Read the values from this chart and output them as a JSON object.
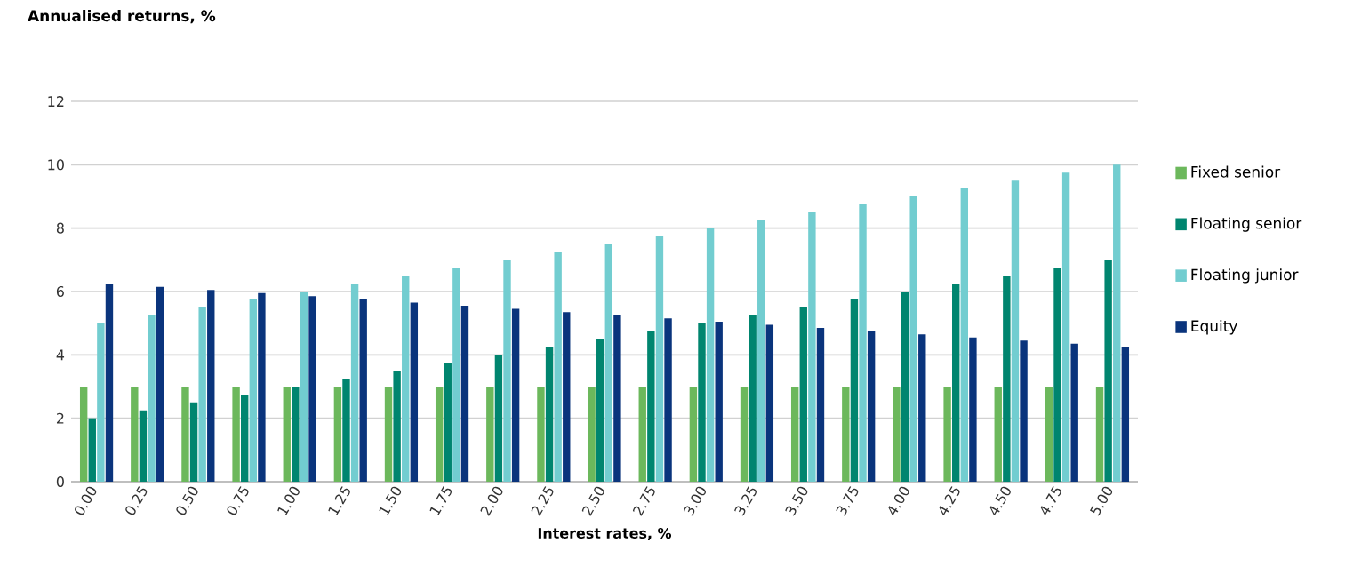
{
  "chart_data": {
    "type": "bar",
    "ylabel": "Annualised returns, %",
    "xlabel": "Interest rates, %",
    "categories": [
      "0.00",
      "0.25",
      "0.50",
      "0.75",
      "1.00",
      "1.25",
      "1.50",
      "1.75",
      "2.00",
      "2.25",
      "2.50",
      "2.75",
      "3.00",
      "3.25",
      "3.50",
      "3.75",
      "4.00",
      "4.25",
      "4.50",
      "4.75",
      "5.00"
    ],
    "series": [
      {
        "name": "Fixed senior",
        "color": "#6cb85c",
        "values": [
          3,
          3,
          3,
          3,
          3,
          3,
          3,
          3,
          3,
          3,
          3,
          3,
          3,
          3,
          3,
          3,
          3,
          3,
          3,
          3,
          3
        ]
      },
      {
        "name": "Floating senior",
        "color": "#00856f",
        "values": [
          2,
          2.25,
          2.5,
          2.75,
          3,
          3.25,
          3.5,
          3.75,
          4,
          4.25,
          4.5,
          4.75,
          5,
          5.25,
          5.5,
          5.75,
          6,
          6.25,
          6.5,
          6.75,
          7
        ]
      },
      {
        "name": "Floating junior",
        "color": "#72cdd0",
        "values": [
          5,
          5.25,
          5.5,
          5.75,
          6,
          6.25,
          6.5,
          6.75,
          7,
          7.25,
          7.5,
          7.75,
          8,
          8.25,
          8.5,
          8.75,
          9,
          9.25,
          9.5,
          9.75,
          10
        ]
      },
      {
        "name": "Equity",
        "color": "#0a347c",
        "values": [
          6.25,
          6.15,
          6.05,
          5.95,
          5.85,
          5.75,
          5.65,
          5.55,
          5.45,
          5.35,
          5.25,
          5.15,
          5.05,
          4.95,
          4.85,
          4.75,
          4.65,
          4.55,
          4.45,
          4.35,
          4.25
        ]
      }
    ],
    "ylim": [
      0,
      12
    ],
    "yticks": [
      0,
      2,
      4,
      6,
      8,
      10,
      12
    ],
    "grid": "y",
    "legend": "right"
  }
}
